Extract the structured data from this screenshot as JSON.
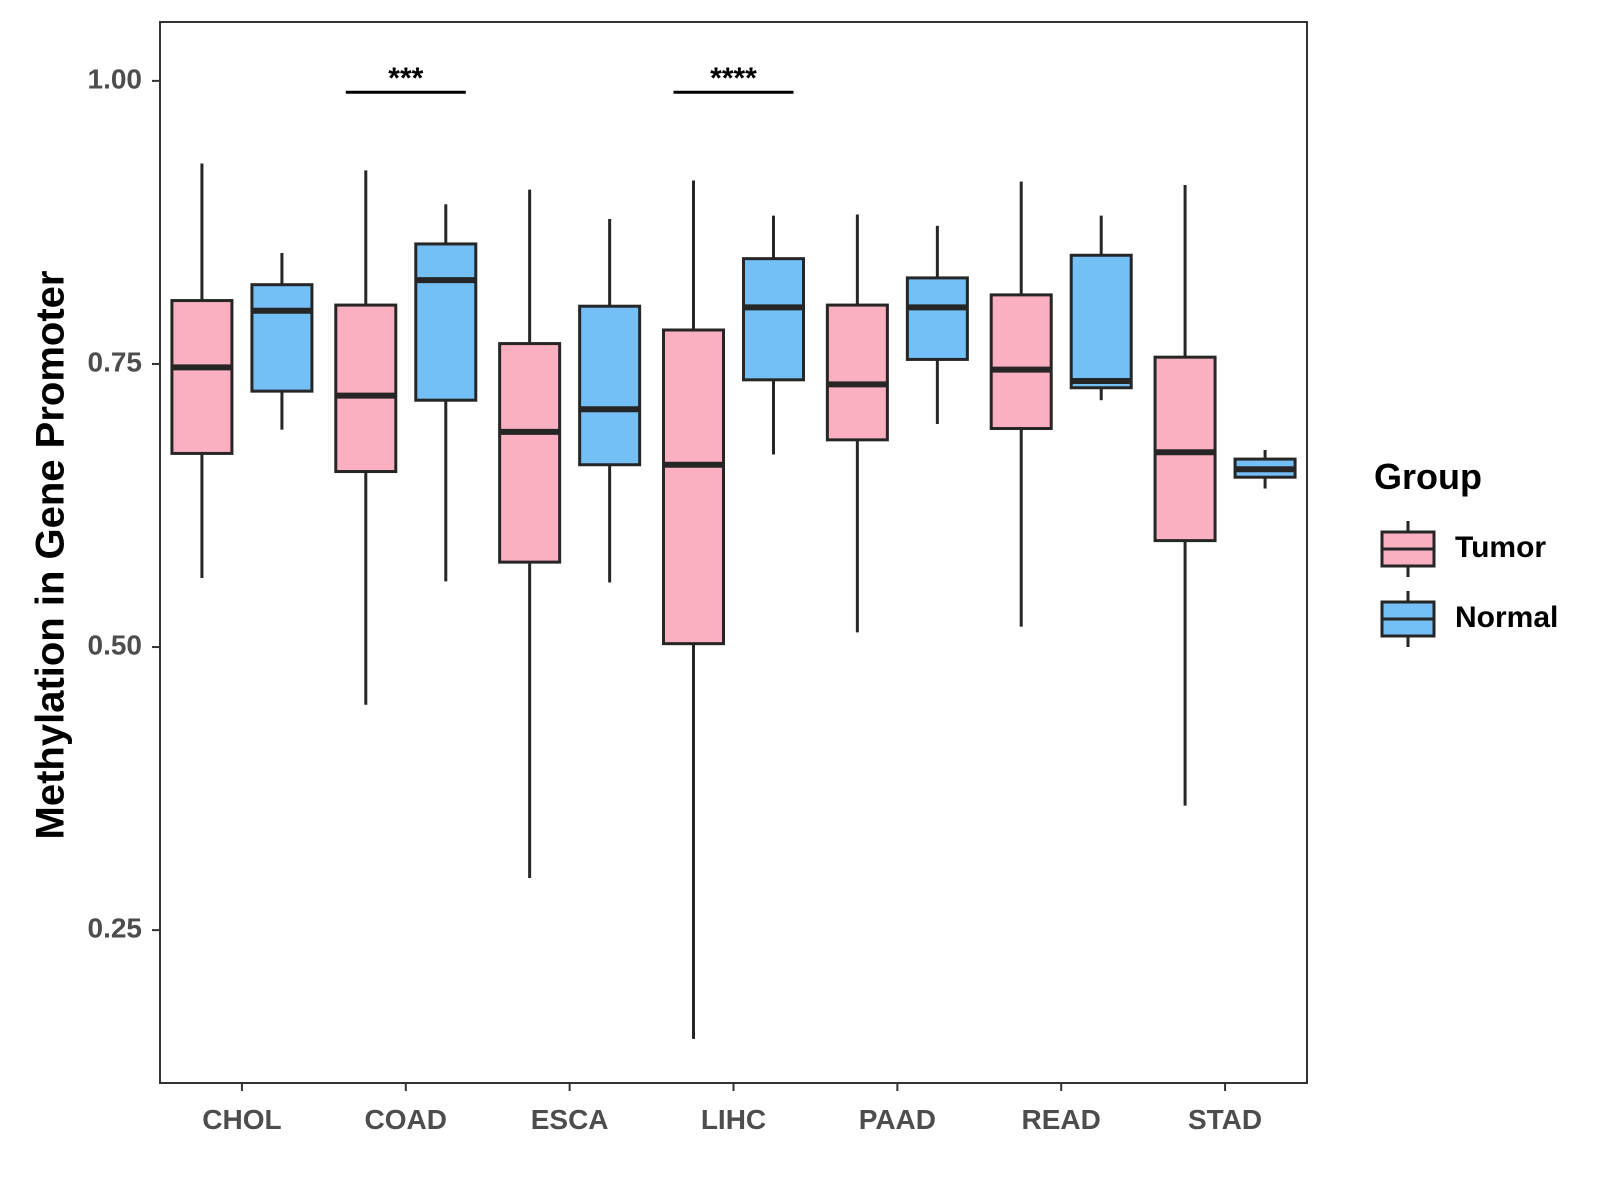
{
  "chart_data": {
    "type": "boxplot",
    "title": "",
    "xlabel": "",
    "ylabel": "Methylation in Gene Promoter",
    "ylim": [
      0.115,
      1.052
    ],
    "yticks": [
      0.25,
      0.5,
      0.75,
      1.0
    ],
    "ytick_labels": [
      "0.25",
      "0.50",
      "0.75",
      "1.00"
    ],
    "categories": [
      "CHOL",
      "COAD",
      "ESCA",
      "LIHC",
      "PAAD",
      "READ",
      "STAD"
    ],
    "legend": {
      "title": "Group",
      "position": "right",
      "entries": [
        {
          "name": "Tumor",
          "color": "#FBB0C1"
        },
        {
          "name": "Normal",
          "color": "#74BFF6"
        }
      ]
    },
    "series": [
      {
        "name": "Tumor",
        "color": "#FBB0C1",
        "boxes": [
          {
            "min": 0.561,
            "q1": 0.671,
            "median": 0.747,
            "q3": 0.806,
            "max": 0.927
          },
          {
            "min": 0.449,
            "q1": 0.655,
            "median": 0.722,
            "q3": 0.802,
            "max": 0.921
          },
          {
            "min": 0.296,
            "q1": 0.575,
            "median": 0.69,
            "q3": 0.768,
            "max": 0.904
          },
          {
            "min": 0.154,
            "q1": 0.503,
            "median": 0.661,
            "q3": 0.78,
            "max": 0.912
          },
          {
            "min": 0.513,
            "q1": 0.683,
            "median": 0.732,
            "q3": 0.802,
            "max": 0.882
          },
          {
            "min": 0.518,
            "q1": 0.693,
            "median": 0.745,
            "q3": 0.811,
            "max": 0.911
          },
          {
            "min": 0.36,
            "q1": 0.594,
            "median": 0.672,
            "q3": 0.756,
            "max": 0.908
          }
        ]
      },
      {
        "name": "Normal",
        "color": "#74BFF6",
        "boxes": [
          {
            "min": 0.692,
            "q1": 0.726,
            "median": 0.797,
            "q3": 0.82,
            "max": 0.848
          },
          {
            "min": 0.558,
            "q1": 0.718,
            "median": 0.824,
            "q3": 0.856,
            "max": 0.891
          },
          {
            "min": 0.557,
            "q1": 0.661,
            "median": 0.71,
            "q3": 0.801,
            "max": 0.878
          },
          {
            "min": 0.67,
            "q1": 0.736,
            "median": 0.8,
            "q3": 0.843,
            "max": 0.881
          },
          {
            "min": 0.697,
            "q1": 0.754,
            "median": 0.8,
            "q3": 0.826,
            "max": 0.872
          },
          {
            "min": 0.718,
            "q1": 0.729,
            "median": 0.735,
            "q3": 0.846,
            "max": 0.881
          },
          {
            "min": 0.64,
            "q1": 0.65,
            "median": 0.657,
            "q3": 0.666,
            "max": 0.674
          }
        ]
      }
    ],
    "annotations": [
      {
        "category": "COAD",
        "label": "***",
        "y": 0.99
      },
      {
        "category": "LIHC",
        "label": "****",
        "y": 0.99
      }
    ]
  }
}
